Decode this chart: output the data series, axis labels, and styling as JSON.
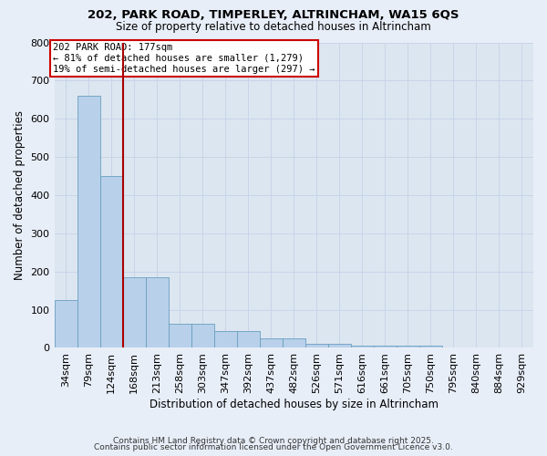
{
  "title1": "202, PARK ROAD, TIMPERLEY, ALTRINCHAM, WA15 6QS",
  "title2": "Size of property relative to detached houses in Altrincham",
  "xlabel": "Distribution of detached houses by size in Altrincham",
  "ylabel": "Number of detached properties",
  "categories": [
    "34sqm",
    "79sqm",
    "124sqm",
    "168sqm",
    "213sqm",
    "258sqm",
    "303sqm",
    "347sqm",
    "392sqm",
    "437sqm",
    "482sqm",
    "526sqm",
    "571sqm",
    "616sqm",
    "661sqm",
    "705sqm",
    "750sqm",
    "795sqm",
    "840sqm",
    "884sqm",
    "929sqm"
  ],
  "values": [
    125,
    660,
    450,
    185,
    185,
    62,
    62,
    45,
    45,
    25,
    25,
    10,
    10,
    5,
    5,
    5,
    5,
    0,
    0,
    0,
    0
  ],
  "bar_color": "#b8d0ea",
  "bar_edge_color": "#6a9fc0",
  "grid_color": "#c8d4e8",
  "background_color": "#dce6f0",
  "fig_background_color": "#e8eef8",
  "vline_position": 2.5,
  "vline_color": "#aa0000",
  "annotation_text": "202 PARK ROAD: 177sqm\n← 81% of detached houses are smaller (1,279)\n19% of semi-detached houses are larger (297) →",
  "annotation_box_facecolor": "#ffffff",
  "annotation_box_edgecolor": "#cc0000",
  "footer1": "Contains HM Land Registry data © Crown copyright and database right 2025.",
  "footer2": "Contains public sector information licensed under the Open Government Licence v3.0.",
  "ylim": [
    0,
    800
  ],
  "yticks": [
    0,
    100,
    200,
    300,
    400,
    500,
    600,
    700,
    800
  ]
}
